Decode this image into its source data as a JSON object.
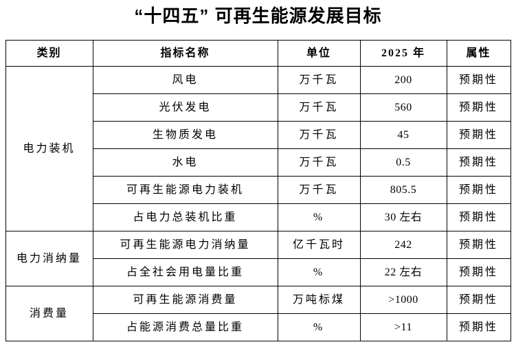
{
  "page": {
    "title": "“十四五” 可再生能源发展目标"
  },
  "table": {
    "headers": [
      "类别",
      "指标名称",
      "单位",
      "2025 年",
      "属性"
    ],
    "groups": [
      {
        "category": "电力装机",
        "rows": [
          {
            "name": "风电",
            "unit": "万千瓦",
            "value": "200",
            "attr": "预期性"
          },
          {
            "name": "光伏发电",
            "unit": "万千瓦",
            "value": "560",
            "attr": "预期性"
          },
          {
            "name": "生物质发电",
            "unit": "万千瓦",
            "value": "45",
            "attr": "预期性"
          },
          {
            "name": "水电",
            "unit": "万千瓦",
            "value": "0.5",
            "attr": "预期性"
          },
          {
            "name": "可再生能源电力装机",
            "unit": "万千瓦",
            "value": "805.5",
            "attr": "预期性"
          },
          {
            "name": "占电力总装机比重",
            "unit": "%",
            "value": "30 左右",
            "attr": "预期性"
          }
        ]
      },
      {
        "category": "电力消纳量",
        "rows": [
          {
            "name": "可再生能源电力消纳量",
            "unit": "亿千瓦时",
            "value": "242",
            "attr": "预期性"
          },
          {
            "name": "占全社会用电量比重",
            "unit": "%",
            "value": "22 左右",
            "attr": "预期性"
          }
        ]
      },
      {
        "category": "消费量",
        "rows": [
          {
            "name": "可再生能源消费量",
            "unit": "万吨标煤",
            "value": ">1000",
            "attr": "预期性"
          },
          {
            "name": "占能源消费总量比重",
            "unit": "%",
            "value": ">11",
            "attr": "预期性"
          }
        ]
      }
    ]
  },
  "chart_data": {
    "type": "table",
    "title": "“十四五” 可再生能源发展目标",
    "columns": [
      "类别",
      "指标名称",
      "单位",
      "2025 年",
      "属性"
    ],
    "rows": [
      [
        "电力装机",
        "风电",
        "万千瓦",
        "200",
        "预期性"
      ],
      [
        "电力装机",
        "光伏发电",
        "万千瓦",
        "560",
        "预期性"
      ],
      [
        "电力装机",
        "生物质发电",
        "万千瓦",
        "45",
        "预期性"
      ],
      [
        "电力装机",
        "水电",
        "万千瓦",
        "0.5",
        "预期性"
      ],
      [
        "电力装机",
        "可再生能源电力装机",
        "万千瓦",
        "805.5",
        "预期性"
      ],
      [
        "电力装机",
        "占电力总装机比重",
        "%",
        "30 左右",
        "预期性"
      ],
      [
        "电力消纳量",
        "可再生能源电力消纳量",
        "亿千瓦时",
        "242",
        "预期性"
      ],
      [
        "电力消纳量",
        "占全社会用电量比重",
        "%",
        "22 左右",
        "预期性"
      ],
      [
        "消费量",
        "可再生能源消费量",
        "万吨标煤",
        ">1000",
        "预期性"
      ],
      [
        "消费量",
        "占能源消费总量比重",
        "%",
        ">11",
        "预期性"
      ]
    ]
  }
}
